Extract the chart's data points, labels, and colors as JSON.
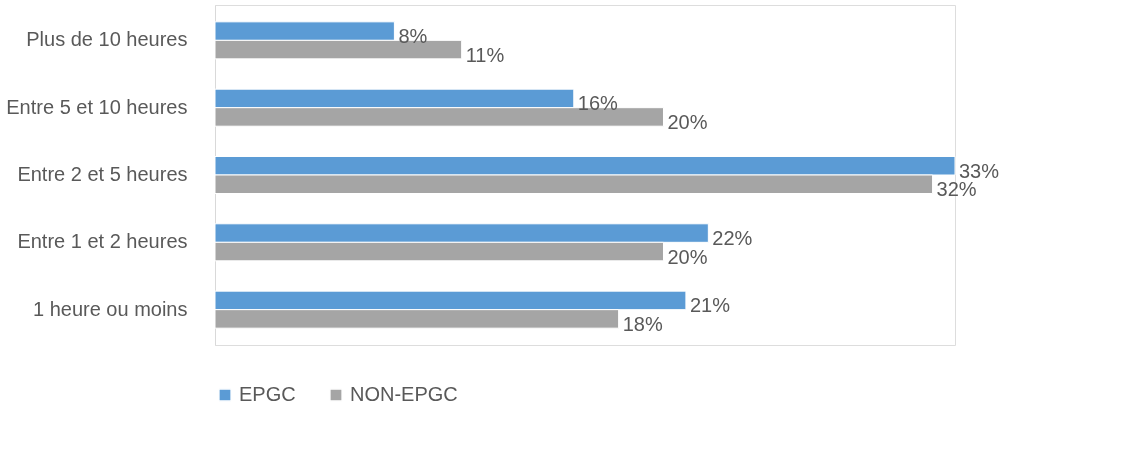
{
  "chart_data": {
    "type": "bar",
    "orientation": "horizontal",
    "categories": [
      "Plus de 10 heures",
      "Entre 5 et 10 heures",
      "Entre 2 et 5 heures",
      "Entre 1 et 2 heures",
      "1 heure ou moins"
    ],
    "series": [
      {
        "name": "EPGC",
        "color": "#5b9bd5",
        "values": [
          8,
          16,
          33,
          22,
          21
        ],
        "value_labels": [
          "8%",
          "16%",
          "33%",
          "22%",
          "21%"
        ]
      },
      {
        "name": "NON-EPGC",
        "color": "#a5a5a5",
        "values": [
          11,
          20,
          32,
          20,
          18
        ],
        "value_labels": [
          "11%",
          "20%",
          "32%",
          "20%",
          "18%"
        ]
      }
    ],
    "legend": "bottom",
    "grid": false,
    "tick_labels": "y"
  }
}
